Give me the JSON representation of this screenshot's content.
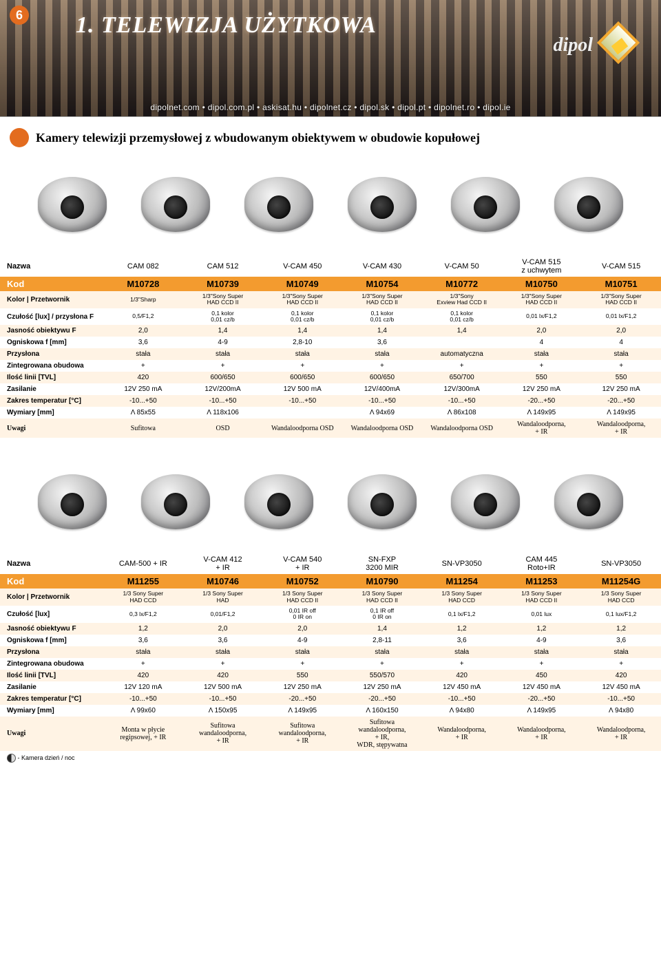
{
  "page_number": "6",
  "main_title": "1. TELEWIZJA UŻYTKOWA",
  "logo_text": "dipol",
  "domains": "dipolnet.com  •  dipol.com.pl  •  askisat.hu  •  dipolnet.cz  •  dipol.sk  •  dipol.pt  •  dipolnet.ro  •  dipol.ie",
  "section_title": "Kamery telewizji przemysłowej z wbudowanym obiektywem w obudowie kopułowej",
  "footnote_legend": " - Kamera dzień / noc",
  "colors": {
    "orange": "#e36c1f",
    "kod_bg": "#f39b2f",
    "stripe": "#fff3e4"
  },
  "table1": {
    "labels": {
      "nazwa": "Nazwa",
      "kod": "Kod",
      "przetwornik": "Kolor | Przetwornik",
      "czulosc": "Czułość [lux] / przysłona F",
      "jasnosc": "Jasność obiektywu F",
      "ogniskowa": "Ogniskowa f [mm]",
      "przyslona": "Przysłona",
      "obudowa": "Zintegrowana obudowa",
      "tvl": "Ilość linii [TVL]",
      "zasilanie": "Zasilanie",
      "temp": "Zakres temperatur [°C]",
      "wymiary": "Wymiary [mm]",
      "uwagi": "Uwagi"
    },
    "cols": [
      {
        "n": "CAM 082",
        "k": "M10728",
        "p": "1/3\"Sharp",
        "c": "0,5/F1,2",
        "j": "2,0",
        "o": "3,6",
        "pr": "stała",
        "ob": "+",
        "t": "420",
        "z": "12V 250 mA",
        "tm": "-10...+50",
        "w": "Λ 85x55",
        "u": "Sufitowa"
      },
      {
        "n": "CAM 512",
        "k": "M10739",
        "p": "1/3\"Sony Super\nHAD CCD II",
        "c": "0,1 kolor\n0,01 cz/b",
        "j": "1,4",
        "o": "4-9",
        "pr": "stała",
        "ob": "+",
        "t": "600/650",
        "z": "12V/200mA",
        "tm": "-10...+50",
        "w": "Λ 118x106",
        "u": "OSD"
      },
      {
        "n": "V-CAM 450",
        "k": "M10749",
        "p": "1/3\"Sony Super\nHAD CCD II",
        "c": "0,1 kolor\n0,01 cz/b",
        "j": "1,4",
        "o": "2,8-10",
        "pr": "stała",
        "ob": "+",
        "t": "600/650",
        "z": "12V 500 mA",
        "tm": "-10...+50",
        "w": "",
        "u": "Wandaloodporna OSD"
      },
      {
        "n": "V-CAM 430",
        "k": "M10754",
        "p": "1/3\"Sony Super\nHAD CCD II",
        "c": "0,1 kolor\n0,01 cz/b",
        "j": "1,4",
        "o": "3,6",
        "pr": "stała",
        "ob": "+",
        "t": "600/650",
        "z": "12V/400mA",
        "tm": "-10...+50",
        "w": "Λ 94x69",
        "u": "Wandaloodporna OSD"
      },
      {
        "n": "V-CAM 50",
        "k": "M10772",
        "p": "1/3\"Sony\nExview Had CCD II",
        "c": "0,1 kolor\n0,01 cz/b",
        "j": "1,4",
        "o": "",
        "pr": "automatyczna",
        "ob": "+",
        "t": "650/700",
        "z": "12V/300mA",
        "tm": "-10...+50",
        "w": "Λ 86x108",
        "u": "Wandaloodporna OSD"
      },
      {
        "n": "V-CAM 515\nz uchwytem",
        "k": "M10750",
        "p": "1/3\"Sony Super\nHAD CCD II",
        "c": "0,01 lx/F1,2",
        "j": "2,0",
        "o": "4",
        "pr": "stała",
        "ob": "+",
        "t": "550",
        "z": "12V 250 mA",
        "tm": "-20...+50",
        "w": "Λ 149x95",
        "u": "Wandaloodporna,\n+ IR"
      },
      {
        "n": "V-CAM 515",
        "k": "M10751",
        "p": "1/3\"Sony Super\nHAD CCD II",
        "c": "0,01 lx/F1,2",
        "j": "2,0",
        "o": "4",
        "pr": "stała",
        "ob": "+",
        "t": "550",
        "z": "12V 250 mA",
        "tm": "-20...+50",
        "w": "Λ 149x95",
        "u": "Wandaloodporna,\n+ IR"
      }
    ]
  },
  "table2": {
    "labels": {
      "nazwa": "Nazwa",
      "kod": "Kod",
      "przetwornik": "Kolor | Przetwornik",
      "czulosc": "Czułość [lux]",
      "jasnosc": "Jasność obiektywu F",
      "ogniskowa": "Ogniskowa f [mm]",
      "przyslona": "Przysłona",
      "obudowa": "Zintegrowana obudowa",
      "tvl": "Ilość linii [TVL]",
      "zasilanie": "Zasilanie",
      "temp": "Zakres temperatur [°C]",
      "wymiary": "Wymiary [mm]",
      "uwagi": "Uwagi"
    },
    "cols": [
      {
        "n": "CAM-500 + IR",
        "k": "M11255",
        "p": "1/3 Sony Super\nHAD CCD",
        "c": "0,3 lx/F1,2",
        "j": "1,2",
        "o": "3,6",
        "pr": "stała",
        "ob": "+",
        "t": "420",
        "z": "12V 120 mA",
        "tm": "-10...+50",
        "w": "Λ 99x60",
        "u": "Monta w płycie\nregipsowej, + IR"
      },
      {
        "n": "V-CAM 412\n+ IR",
        "k": "M10746",
        "p": "1/3 Sony Super\nHAD",
        "c": "0,01/F1,2",
        "j": "2,0",
        "o": "3,6",
        "pr": "stała",
        "ob": "+",
        "t": "420",
        "z": "12V 500 mA",
        "tm": "-10...+50",
        "w": "Λ 150x95",
        "u": "Sufitowa\nwandaloodporna,\n+ IR"
      },
      {
        "n": "V-CAM 540\n+ IR",
        "k": "M10752",
        "p": "1/3 Sony Super\nHAD CCD II",
        "c": "0,01 IR off\n0 IR on",
        "j": "2,0",
        "o": "4-9",
        "pr": "stała",
        "ob": "+",
        "t": "550",
        "z": "12V 250 mA",
        "tm": "-20...+50",
        "w": "Λ 149x95",
        "u": "Sufitowa\nwandaloodporna,\n+ IR"
      },
      {
        "n": "SN-FXP\n3200 MIR",
        "k": "M10790",
        "p": "1/3 Sony Super\nHAD CCD II",
        "c": "0,1 IR off\n0 IR on",
        "j": "1,4",
        "o": "2,8-11",
        "pr": "stała",
        "ob": "+",
        "t": "550/570",
        "z": "12V 250 mA",
        "tm": "-20...+50",
        "w": "Λ 160x150",
        "u": "Sufitowa\nwandaloodporna,\n+ IR,\nWDR, stępywatna"
      },
      {
        "n": "SN-VP3050",
        "k": "M11254",
        "p": "1/3 Sony Super\nHAD CCD",
        "c": "0,1 lx/F1,2",
        "j": "1,2",
        "o": "3,6",
        "pr": "stała",
        "ob": "+",
        "t": "420",
        "z": "12V 450 mA",
        "tm": "-10...+50",
        "w": "Λ 94x80",
        "u": "Wandaloodporna,\n+ IR"
      },
      {
        "n": "CAM 445\nRoto+IR",
        "k": "M11253",
        "p": "1/3 Sony Super\nHAD CCD II",
        "c": "0,01 lux",
        "j": "1,2",
        "o": "4-9",
        "pr": "stała",
        "ob": "+",
        "t": "450",
        "z": "12V 450 mA",
        "tm": "-20...+50",
        "w": "Λ 149x95",
        "u": "Wandaloodporna,\n+ IR"
      },
      {
        "n": "SN-VP3050",
        "k": "M11254G",
        "p": "1/3 Sony Super\nHAD CCD",
        "c": "0,1 lux/F1,2",
        "j": "1,2",
        "o": "3,6",
        "pr": "stała",
        "ob": "+",
        "t": "420",
        "z": "12V 450 mA",
        "tm": "-10...+50",
        "w": "Λ 94x80",
        "u": "Wandaloodporna,\n+ IR"
      }
    ]
  }
}
